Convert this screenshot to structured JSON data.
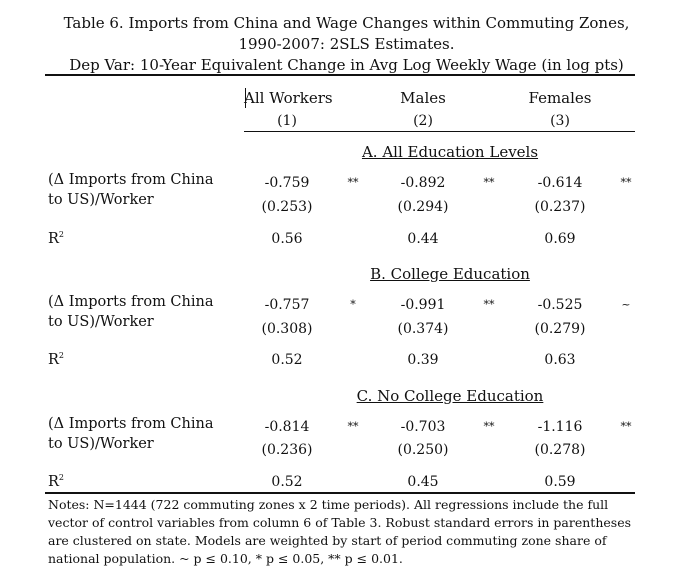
{
  "title": {
    "line1": "Table 6. Imports from China and Wage Changes within Commuting Zones,",
    "line2": "1990-2007: 2SLS Estimates.",
    "line3": "Dep Var: 10-Year Equivalent Change in Avg Log Weekly Wage (in log pts)"
  },
  "columns": [
    {
      "name": "All Workers",
      "num": "(1)"
    },
    {
      "name": "Males",
      "num": "(2)"
    },
    {
      "name": "Females",
      "num": "(3)"
    }
  ],
  "row_label": {
    "line1": "(Δ Imports from China",
    "line2": "to US)/Worker",
    "r2": "R"
  },
  "panels": [
    {
      "title": "A. All Education Levels",
      "coef": [
        "-0.759",
        "-0.892",
        "-0.614"
      ],
      "stars": [
        "**",
        "**",
        "**"
      ],
      "se": [
        "(0.253)",
        "(0.294)",
        "(0.237)"
      ],
      "r2": [
        "0.56",
        "0.44",
        "0.69"
      ]
    },
    {
      "title": "B. College Education",
      "coef": [
        "-0.757",
        "-0.991",
        "-0.525"
      ],
      "stars": [
        "*",
        "**",
        "~"
      ],
      "se": [
        "(0.308)",
        "(0.374)",
        "(0.279)"
      ],
      "r2": [
        "0.52",
        "0.39",
        "0.63"
      ]
    },
    {
      "title": "C. No College Education",
      "coef": [
        "-0.814",
        "-0.703",
        "-1.116"
      ],
      "stars": [
        "**",
        "**",
        "**"
      ],
      "se": [
        "(0.236)",
        "(0.250)",
        "(0.278)"
      ],
      "r2": [
        "0.52",
        "0.45",
        "0.59"
      ]
    }
  ],
  "notes": "Notes: N=1444 (722 commuting zones x 2 time periods). All regressions include the full vector of control variables from column 6 of Table 3. Robust standard errors in parentheses are clustered on state. Models are weighted by start of period commuting zone share of national population.  ~ p ≤ 0.10, * p ≤ 0.05, ** p ≤ 0.01."
}
